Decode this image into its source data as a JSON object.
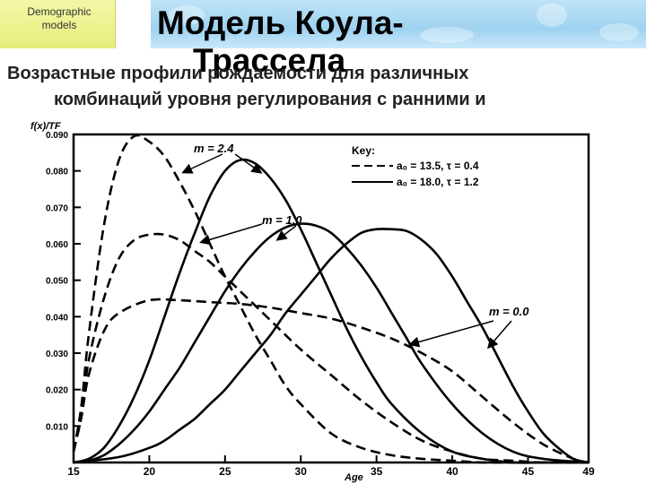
{
  "badge": {
    "line1": "Demographic",
    "line2": "models"
  },
  "title": {
    "line1": "Модель Коула-",
    "line2": "Трассела"
  },
  "subtitle": {
    "line1": "Возрастные профили рождаемости для различных",
    "line2": "комбинаций уровня регулирования с ранними и"
  },
  "chart_data": {
    "type": "line",
    "ylabel": "f(x)/TF",
    "xlabel": "Age",
    "xlim": [
      15,
      49
    ],
    "ylim": [
      0,
      0.09
    ],
    "x_ticks": [
      15,
      20,
      25,
      30,
      35,
      40,
      45,
      49
    ],
    "y_ticks": [
      0.01,
      0.02,
      0.03,
      0.04,
      0.05,
      0.06,
      0.07,
      0.08,
      0.09
    ],
    "y_tick_labels": [
      "0.010",
      "0.020",
      "0.030",
      "0.040",
      "0.050",
      "0.060",
      "0.070",
      "0.080",
      "0.090"
    ],
    "legend": {
      "title": "Key:",
      "entries": [
        {
          "style": "dashed",
          "text": "a₀ = 13.5,   τ = 0.4"
        },
        {
          "style": "solid",
          "text": "a₀ = 18.0,   τ = 1.2"
        }
      ]
    },
    "annotations": [
      "m = 2.4",
      "m = 1.0",
      "m = 0.0"
    ],
    "series": [
      {
        "style": "dashed",
        "x": [
          15,
          15.5,
          16,
          17,
          18,
          19,
          20,
          21,
          22,
          23,
          24,
          25,
          26,
          27,
          28,
          29,
          30,
          32,
          34,
          36,
          38,
          40,
          42,
          44,
          46,
          49
        ],
        "y": [
          0.003,
          0.015,
          0.035,
          0.065,
          0.083,
          0.0895,
          0.088,
          0.084,
          0.077,
          0.069,
          0.06,
          0.051,
          0.043,
          0.035,
          0.028,
          0.021,
          0.016,
          0.008,
          0.004,
          0.002,
          0.001,
          0.0005,
          0,
          0,
          0,
          0
        ]
      },
      {
        "style": "dashed",
        "x": [
          15,
          15.5,
          16,
          17,
          18,
          19,
          20,
          21,
          22,
          23,
          24,
          25,
          26,
          27,
          28,
          30,
          32,
          34,
          36,
          38,
          40,
          42,
          44,
          46,
          49
        ],
        "y": [
          0.003,
          0.013,
          0.028,
          0.045,
          0.056,
          0.061,
          0.0625,
          0.0625,
          0.061,
          0.058,
          0.055,
          0.051,
          0.047,
          0.043,
          0.039,
          0.031,
          0.024,
          0.017,
          0.011,
          0.006,
          0.003,
          0.001,
          0.0005,
          0,
          0
        ]
      },
      {
        "style": "dashed",
        "x": [
          15,
          15.5,
          16,
          17,
          18,
          20,
          22,
          24,
          26,
          28,
          30,
          32,
          34,
          36,
          38,
          40,
          42,
          44,
          46,
          48,
          49
        ],
        "y": [
          0.003,
          0.012,
          0.024,
          0.036,
          0.041,
          0.0445,
          0.0445,
          0.044,
          0.0435,
          0.0425,
          0.041,
          0.0395,
          0.037,
          0.034,
          0.03,
          0.025,
          0.018,
          0.011,
          0.005,
          0.001,
          0
        ]
      },
      {
        "style": "solid",
        "x": [
          15,
          16,
          17,
          18,
          19,
          20,
          21,
          22,
          23,
          24,
          25,
          26,
          27,
          28,
          29,
          30,
          31,
          32,
          33,
          34,
          35,
          36,
          38,
          40,
          42,
          44,
          46,
          49
        ],
        "y": [
          0,
          0.001,
          0.004,
          0.01,
          0.018,
          0.028,
          0.04,
          0.052,
          0.063,
          0.073,
          0.08,
          0.083,
          0.082,
          0.078,
          0.072,
          0.064,
          0.055,
          0.046,
          0.037,
          0.029,
          0.022,
          0.016,
          0.008,
          0.003,
          0.001,
          0,
          0,
          0
        ]
      },
      {
        "style": "solid",
        "x": [
          15,
          16,
          17,
          18,
          19,
          20,
          21,
          22,
          23,
          24,
          25,
          26,
          27,
          28,
          29,
          30,
          31,
          32,
          33,
          34,
          35,
          36,
          37,
          38,
          40,
          42,
          44,
          46,
          49
        ],
        "y": [
          0,
          0.0005,
          0.002,
          0.005,
          0.009,
          0.014,
          0.02,
          0.026,
          0.033,
          0.04,
          0.047,
          0.053,
          0.058,
          0.062,
          0.0645,
          0.0655,
          0.065,
          0.063,
          0.059,
          0.054,
          0.048,
          0.041,
          0.034,
          0.027,
          0.016,
          0.008,
          0.003,
          0.001,
          0
        ]
      },
      {
        "style": "solid",
        "x": [
          15,
          18,
          20,
          21,
          22,
          23,
          24,
          25,
          26,
          27,
          28,
          29,
          30,
          31,
          32,
          33,
          34,
          35,
          36,
          37,
          38,
          39,
          40,
          41,
          42,
          43,
          44,
          45,
          46,
          47,
          48,
          49
        ],
        "y": [
          0,
          0.0015,
          0.004,
          0.006,
          0.009,
          0.012,
          0.016,
          0.02,
          0.025,
          0.03,
          0.035,
          0.041,
          0.046,
          0.051,
          0.056,
          0.06,
          0.063,
          0.064,
          0.064,
          0.0635,
          0.061,
          0.057,
          0.051,
          0.044,
          0.037,
          0.029,
          0.021,
          0.014,
          0.008,
          0.004,
          0.001,
          0
        ]
      }
    ]
  }
}
